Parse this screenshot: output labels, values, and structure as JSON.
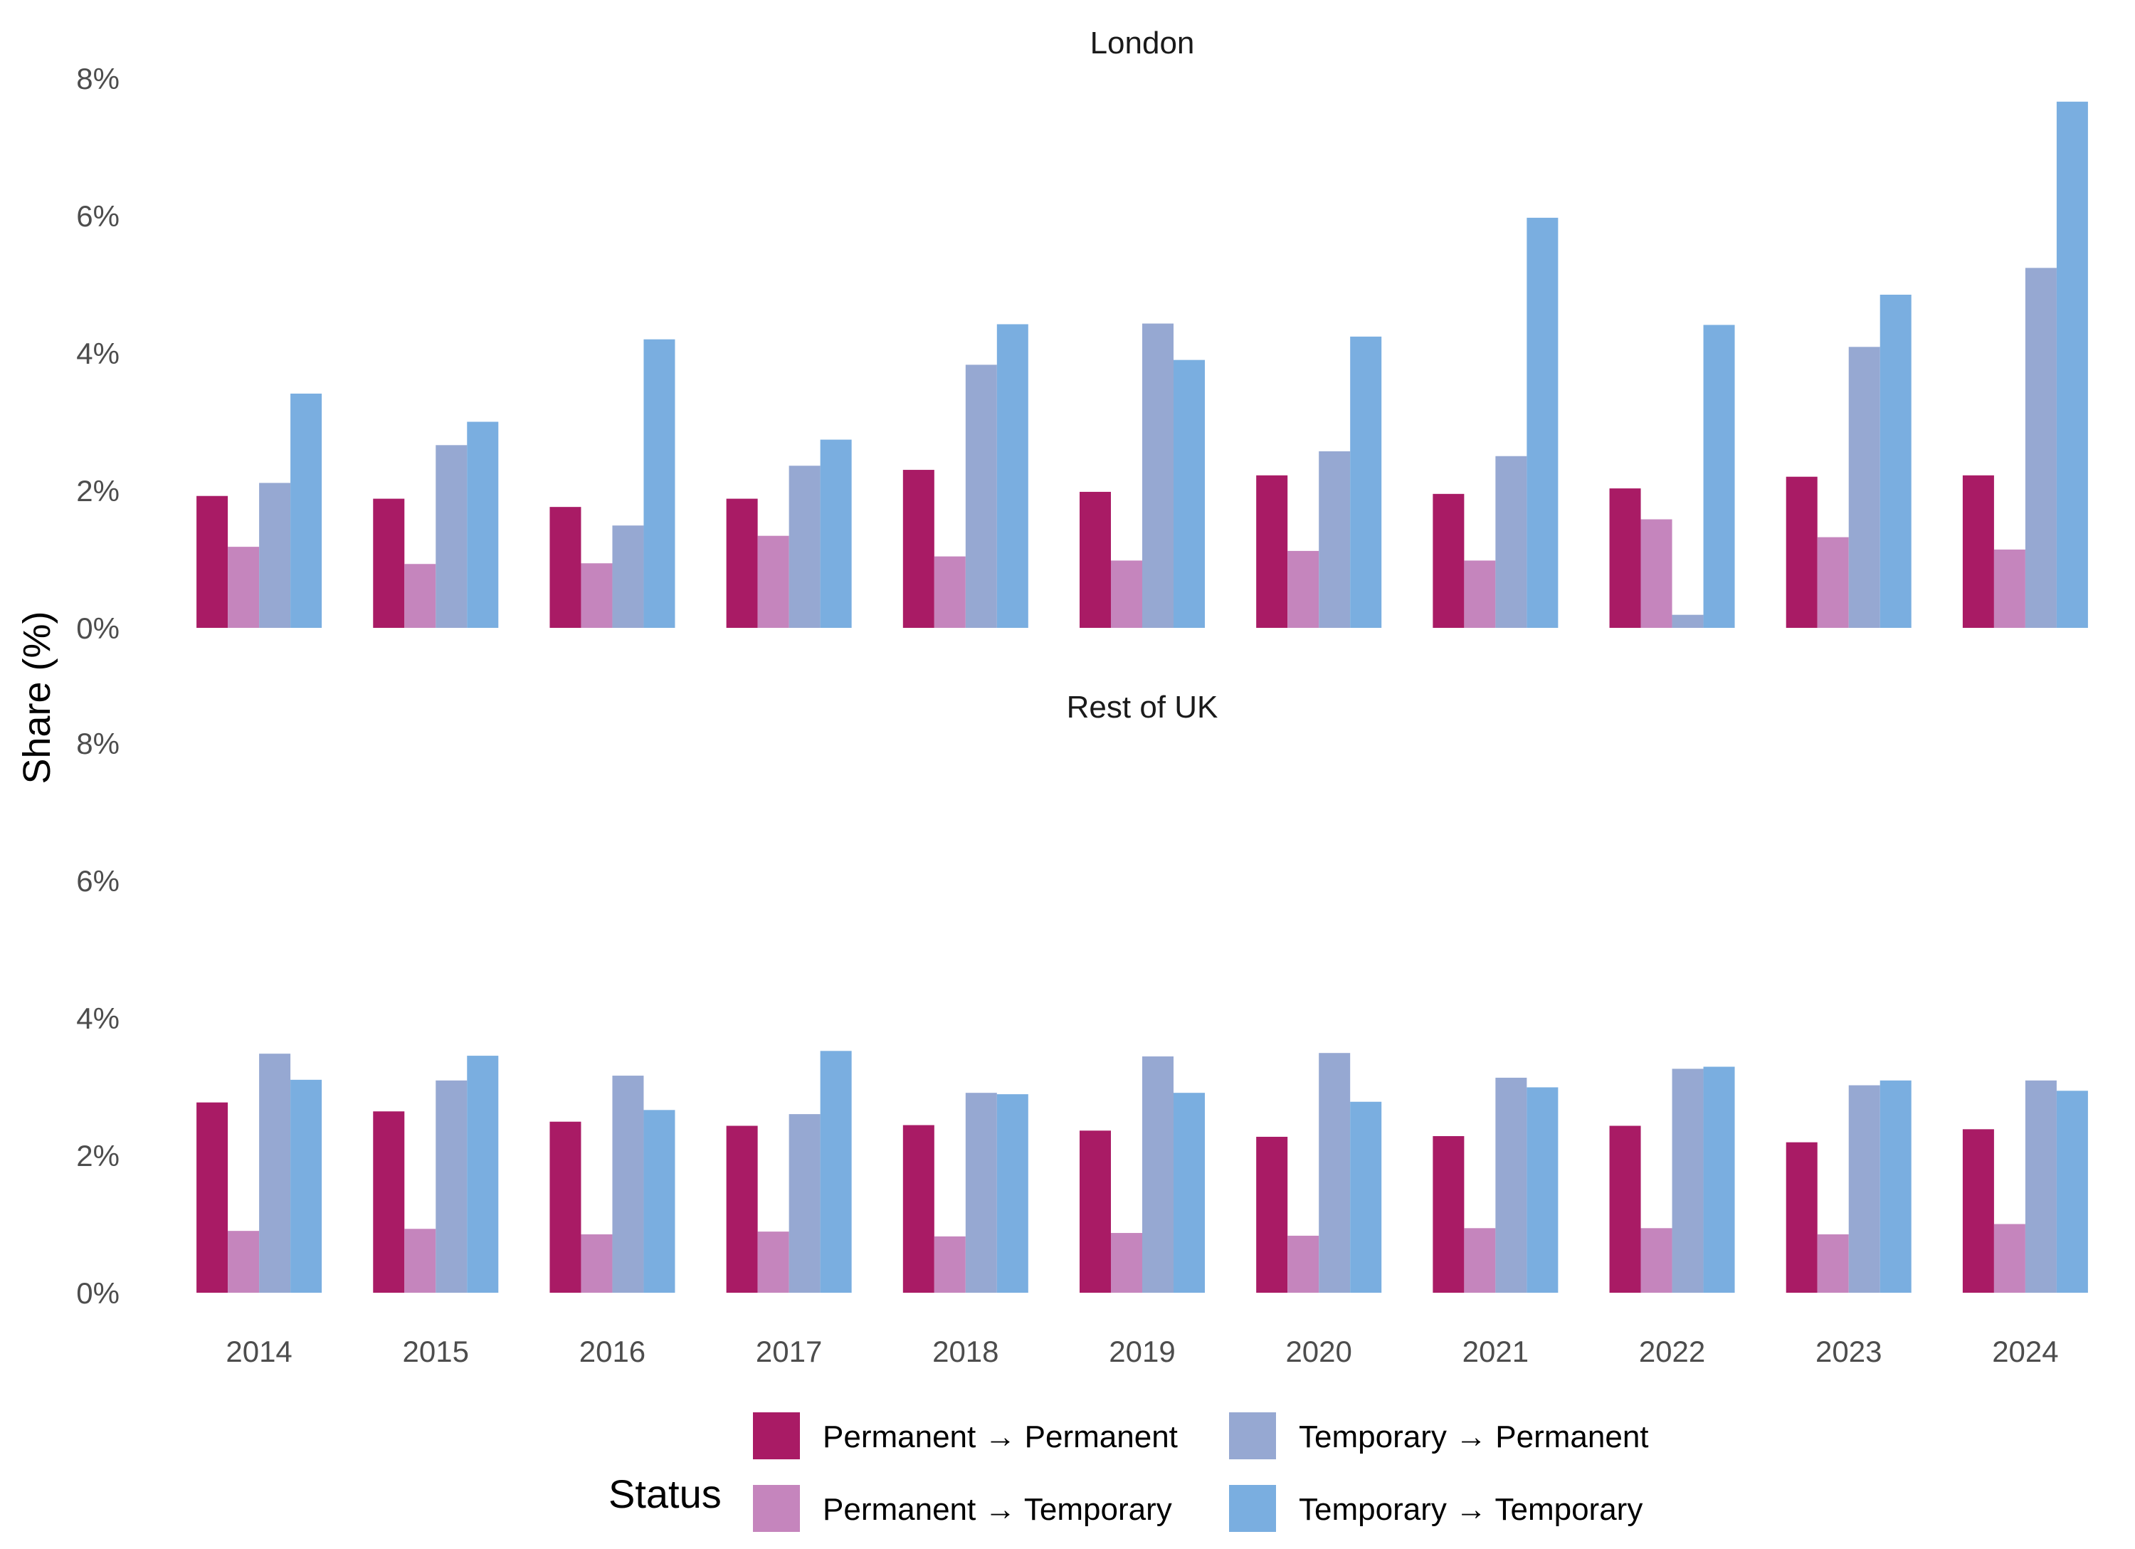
{
  "chart_data": {
    "type": "bar",
    "ylabel": "Share (%)",
    "ylim": [
      0,
      8
    ],
    "yticks": [
      "0%",
      "2%",
      "4%",
      "6%",
      "8%"
    ],
    "grid": false,
    "legend": {
      "title": "Status",
      "position": "bottom",
      "entries": [
        "Permanent → Permanent",
        "Permanent → Temporary",
        "Temporary → Permanent",
        "Temporary → Temporary"
      ]
    },
    "colors": [
      "#a91b65",
      "#c585bd",
      "#96a8d2",
      "#7aaee0"
    ],
    "categories": [
      "2014",
      "2015",
      "2016",
      "2017",
      "2018",
      "2019",
      "2020",
      "2021",
      "2022",
      "2023",
      "2024"
    ],
    "facets": [
      {
        "title": "London",
        "series": [
          {
            "name": "Permanent → Permanent",
            "values": [
              1.92,
              1.88,
              1.76,
              1.88,
              2.3,
              1.98,
              2.22,
              1.95,
              2.03,
              2.2,
              2.22
            ]
          },
          {
            "name": "Permanent → Temporary",
            "values": [
              1.18,
              0.93,
              0.94,
              1.34,
              1.04,
              0.98,
              1.12,
              0.98,
              1.58,
              1.32,
              1.14
            ]
          },
          {
            "name": "Temporary → Permanent",
            "values": [
              2.11,
              2.66,
              1.49,
              2.36,
              3.83,
              4.43,
              2.57,
              2.5,
              0.19,
              4.09,
              5.24
            ]
          },
          {
            "name": "Temporary → Temporary",
            "values": [
              3.41,
              3.0,
              4.2,
              2.74,
              4.42,
              3.9,
              4.24,
              5.97,
              4.41,
              4.85,
              7.66
            ]
          }
        ]
      },
      {
        "title": "Rest of UK",
        "series": [
          {
            "name": "Permanent → Permanent",
            "values": [
              2.77,
              2.64,
              2.49,
              2.43,
              2.44,
              2.36,
              2.27,
              2.28,
              2.43,
              2.19,
              2.38
            ]
          },
          {
            "name": "Permanent → Temporary",
            "values": [
              0.9,
              0.93,
              0.85,
              0.89,
              0.82,
              0.87,
              0.83,
              0.94,
              0.94,
              0.85,
              1.0
            ]
          },
          {
            "name": "Temporary → Permanent",
            "values": [
              3.48,
              3.09,
              3.16,
              2.6,
              2.91,
              3.44,
              3.49,
              3.13,
              3.26,
              3.02,
              3.09
            ]
          },
          {
            "name": "Temporary → Temporary",
            "values": [
              3.1,
              3.45,
              2.66,
              3.52,
              2.89,
              2.91,
              2.78,
              2.99,
              3.29,
              3.09,
              2.94
            ]
          }
        ]
      }
    ]
  }
}
